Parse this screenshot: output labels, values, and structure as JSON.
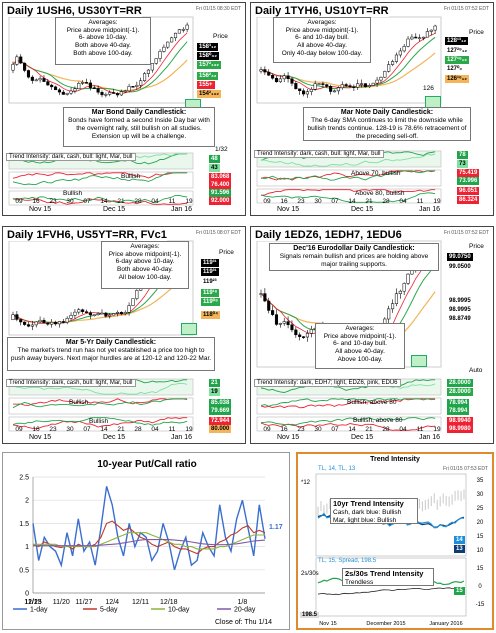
{
  "panels": {
    "p1": {
      "title": "Daily 1USH6, US30YT=RR",
      "stamp": "Fri 01/15 08:30 EDT",
      "averages": [
        "Averages:",
        "Price above midpoint(-1).",
        "6- above 10-day.",
        "Both above 40-day.",
        "Both above 100-day."
      ],
      "candle_title": "Mar Bond Daily Candlestick:",
      "candle_text": "Bonds have formed a second Inside Day bar with the overnight rally, still bullish on all studies. Extension up will be a challenge.",
      "trend": "Trend Intensity: dark, cash, bull: light, Mar, bull",
      "ind_labels": [
        "Bullish",
        "Bullish"
      ],
      "price_label": "Price",
      "price_tags": [
        "158³₁₂",
        "158⁰₃₂",
        "157²₁₃₂",
        "156²₃₂",
        "155+",
        "154²₁₃₂"
      ],
      "ind_tags": [
        "48",
        "43",
        "83.068",
        "76.400",
        "91.596",
        "92.000"
      ],
      "xlabels": [
        "09",
        "16",
        "23",
        "30",
        "07",
        "14",
        "21",
        "28",
        "04",
        "11",
        "19"
      ],
      "months": [
        "Nov 15",
        "Dec 15",
        "Jan 16"
      ],
      "tick": "1/32"
    },
    "p2": {
      "title": "Daily 1TYH6, US10YT=RR",
      "stamp": "Fri 01/15 07:52 EDT",
      "averages": [
        "Averages:",
        "Price above midpoint(-1).",
        "6- and 10-day bull.",
        "All above 40-day.",
        "Only 40-day below 100-day."
      ],
      "candle_title": "Mar Note Daily Candlestick:",
      "candle_text": "The 6-day SMA continues to limit the downside while bullish trends continue. 128-19 is 78.6% retracement of the preceding sell-off.",
      "trend": "Trend Intensity: dark, cash, bull: light, Mar, bull",
      "ind_labels": [
        "Above 70, bullish",
        "Above 80, bullish"
      ],
      "price_label": "Price",
      "price_tags": [
        "128¹³₁₂",
        "127²⁹₁₂",
        "127¹⁶₁₂",
        "127⁰₀",
        "126¹⁶₁₂"
      ],
      "axis_label": "126",
      "ind_tags": [
        "78",
        "73",
        "75.419",
        "73.996",
        "96.051",
        "86.324"
      ],
      "xlabels": [
        "09",
        "16",
        "23",
        "30",
        "07",
        "14",
        "21",
        "28",
        "04",
        "11",
        "19"
      ],
      "months": [
        "Nov 15",
        "Dec 15",
        "Jan 16"
      ]
    },
    "p3": {
      "title": "Daily 1FVH6, US5YT=RR, FVc1",
      "stamp": "Fri 01/15 08:07 EDT",
      "averages": [
        "Averages:",
        "Price above midpoint(-1).",
        "6-day above 10-day.",
        "Both above 40-day.",
        "All below 100-day."
      ],
      "candle_title": "Mar 5-Yr Daily Candlestick:",
      "candle_text": "The market's trend run has not yet established a price too high to push away buyers. Next major hurdles are at 120-12 and 120-22 Mar.",
      "trend": "Trend Intensity: dark, cash, bull: light, Mar, bull",
      "ind_labels": [
        "Bullish",
        "Bullish"
      ],
      "price_label": "Price",
      "price_tags": [
        "119³¹",
        "119³¹",
        "119²³",
        "119¹⁶",
        "119⁰⁸",
        "118⁰⁴"
      ],
      "ind_tags": [
        "21",
        "19",
        "85.038",
        "79.669",
        "72.944",
        "80.000"
      ],
      "xlabels": [
        "09",
        "16",
        "23",
        "30",
        "07",
        "14",
        "21",
        "28",
        "04",
        "11",
        "19"
      ],
      "months": [
        "Nov 15",
        "Dec 15",
        "Jan 16"
      ]
    },
    "p4": {
      "title": "Daily 1EDZ6, 1EDH7, 1EDU6",
      "stamp": "Fri 01/15 07:52 EDT",
      "candle_title": "Dec'16 Eurodollar Daily Candlestick:",
      "candle_text": "Signals remain bullish and prices are holding above major trailing supports.",
      "averages": [
        "Averages:",
        "Price above midpoint(-1).",
        "6- and 10-day bull.",
        "All above 40-day.",
        "Above 100-day."
      ],
      "trend": "Trend Intensity: dark, EDH7; light, EDZ6, pink, EDU6",
      "ind_labels": [
        "Bullish, above 80",
        "Bullish, above 80"
      ],
      "price_label": "Price",
      "price_tags": [
        "99.0750",
        "99.0500",
        "98.9995",
        "98.9995",
        "98.8749"
      ],
      "auto": "Auto",
      "ind_tags": [
        "28.0000",
        "28.0000",
        "78.994",
        "78.994",
        "98.9940",
        "98.9980"
      ],
      "xlabels": [
        "09",
        "16",
        "23",
        "30",
        "07",
        "14",
        "21",
        "28",
        "04",
        "11",
        "19"
      ],
      "months": [
        "Nov 15",
        "Dec 15",
        "Jan 16"
      ]
    },
    "p5": {
      "title": "10-year Put/Call ratio",
      "value_label": "1.17",
      "close_label": "Close of:  Thu  1/14"
    },
    "p6": {
      "title": "Trend Intensity",
      "stamp": "Fri 01/15 07:53 EDT",
      "top_label": "TL, 14, TL, 13",
      "box1_title": "10yr Trend Intensity",
      "box1_text": [
        "Cash, dark blue: Bullish",
        "Mar, light blue: Bullish"
      ],
      "box2_title": "2s/30s Trend Intensity",
      "box2_text": [
        "Trendless"
      ],
      "bottom_label": "TL, 15, Spread, 198.5",
      "ticks_top": [
        "35",
        "30",
        "25",
        "20",
        "15",
        "10"
      ],
      "ticks_bottom": [
        "15",
        "0",
        "-15"
      ],
      "left_ticks": [
        "*12",
        "2s/30s"
      ],
      "left_value": "198.5",
      "right_tags": [
        "14",
        "13",
        "15"
      ],
      "xlabels": [
        "Nov 15",
        "December 2015",
        "January 2016"
      ]
    }
  },
  "chart_data": {
    "type": "line",
    "title": "10-year Put/Call ratio",
    "categories": [
      "11/13",
      "11/16",
      "11/17",
      "11/18",
      "11/19",
      "11/20",
      "11/23",
      "11/24",
      "11/25",
      "11/27",
      "11/30",
      "12/1",
      "12/2",
      "12/3",
      "12/4",
      "12/7",
      "12/8",
      "12/9",
      "12/10",
      "12/11",
      "12/14",
      "12/15",
      "12/16",
      "12/17",
      "12/18",
      "12/21",
      "12/22",
      "12/23",
      "12/24",
      "12/28",
      "12/29",
      "12/30",
      "12/31",
      "1/4",
      "1/5",
      "1/6",
      "1/7",
      "1/8",
      "1/11",
      "1/12",
      "1/13",
      "1/14"
    ],
    "x_ticks": [
      "11/13",
      "11/20",
      "11/27",
      "12/4",
      "12/11",
      "12/18",
      "12/25",
      "1/1",
      "1/8"
    ],
    "ylim": [
      0,
      2.5
    ],
    "y_ticks": [
      "0",
      "0.5",
      "1",
      "1.5",
      "2",
      "2.5"
    ],
    "series": [
      {
        "name": "1-day",
        "color": "#3a6ecf",
        "values": [
          1.5,
          0.7,
          1.2,
          1.0,
          0.9,
          0.6,
          1.3,
          0.8,
          1.6,
          0.9,
          1.1,
          0.6,
          1.4,
          2.3,
          1.9,
          1.2,
          0.8,
          1.5,
          1.0,
          1.3,
          1.2,
          0.7,
          0.9,
          1.5,
          1.1,
          0.5,
          0.9,
          1.2,
          0.6,
          0.7,
          1.3,
          1.0,
          0.8,
          1.9,
          1.2,
          0.9,
          1.6,
          2.0,
          1.4,
          0.8,
          1.9,
          1.17
        ]
      },
      {
        "name": "5-day",
        "color": "#c0392b",
        "values": [
          1.05,
          1.0,
          1.1,
          1.05,
          1.0,
          0.98,
          1.02,
          0.95,
          1.05,
          1.0,
          1.0,
          1.05,
          1.2,
          1.5,
          1.55,
          1.45,
          1.35,
          1.4,
          1.3,
          1.2,
          1.15,
          1.05,
          1.0,
          1.05,
          1.1,
          1.0,
          0.95,
          0.95,
          0.9,
          0.85,
          0.95,
          1.0,
          1.0,
          1.1,
          1.15,
          1.25,
          1.3,
          1.4,
          1.45,
          1.3,
          1.35,
          1.3
        ]
      },
      {
        "name": "10-day",
        "color": "#8fb33a",
        "values": [
          1.05,
          1.05,
          1.05,
          1.05,
          1.05,
          1.0,
          1.0,
          1.0,
          1.0,
          1.0,
          1.0,
          1.0,
          1.05,
          1.1,
          1.15,
          1.2,
          1.25,
          1.3,
          1.3,
          1.3,
          1.3,
          1.25,
          1.2,
          1.15,
          1.1,
          1.05,
          1.05,
          1.0,
          1.0,
          0.95,
          0.95,
          0.95,
          0.95,
          1.0,
          1.0,
          1.05,
          1.1,
          1.15,
          1.2,
          1.25,
          1.25,
          1.25
        ]
      },
      {
        "name": "20-day",
        "color": "#7e5aa8",
        "values": [
          1.02,
          1.02,
          1.02,
          1.02,
          1.02,
          1.02,
          1.02,
          1.02,
          1.02,
          1.02,
          1.02,
          1.02,
          1.03,
          1.04,
          1.05,
          1.06,
          1.08,
          1.1,
          1.12,
          1.14,
          1.15,
          1.15,
          1.15,
          1.15,
          1.15,
          1.14,
          1.13,
          1.12,
          1.1,
          1.08,
          1.06,
          1.05,
          1.04,
          1.04,
          1.04,
          1.05,
          1.06,
          1.08,
          1.1,
          1.12,
          1.13,
          1.14
        ]
      }
    ]
  }
}
